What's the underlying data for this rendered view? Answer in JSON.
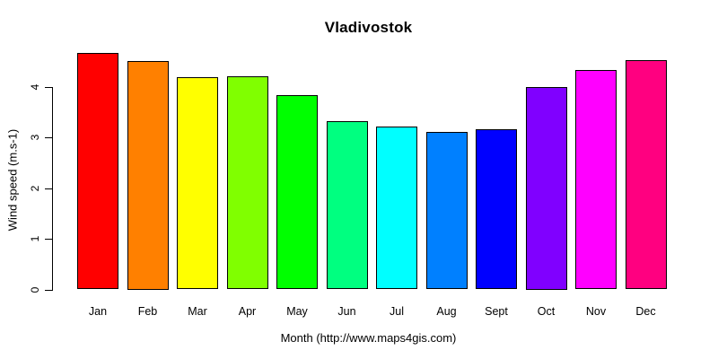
{
  "chart_data": {
    "type": "bar",
    "title": "Vladivostok",
    "xlabel": "Month (http://www.maps4gis.com)",
    "ylabel": "Wind speed (m.s-1)",
    "categories": [
      "Jan",
      "Feb",
      "Mar",
      "Apr",
      "May",
      "Jun",
      "Jul",
      "Aug",
      "Sept",
      "Oct",
      "Nov",
      "Dec"
    ],
    "values": [
      4.66,
      4.5,
      4.19,
      4.21,
      3.83,
      3.32,
      3.21,
      3.1,
      3.16,
      4.0,
      4.33,
      4.53
    ],
    "bar_colors": [
      "#FF0000",
      "#FF8000",
      "#FFFF00",
      "#80FF00",
      "#00FF00",
      "#00FF80",
      "#00FFFF",
      "#0080FF",
      "#0000FF",
      "#8000FF",
      "#FF00FF",
      "#FF0080"
    ],
    "bar_border_color": "#000000",
    "background_color": "#FFFFFF",
    "yticks": [
      0,
      1,
      2,
      3,
      4
    ],
    "ylim": [
      0,
      4.8
    ],
    "grid": false,
    "legend": "none"
  }
}
